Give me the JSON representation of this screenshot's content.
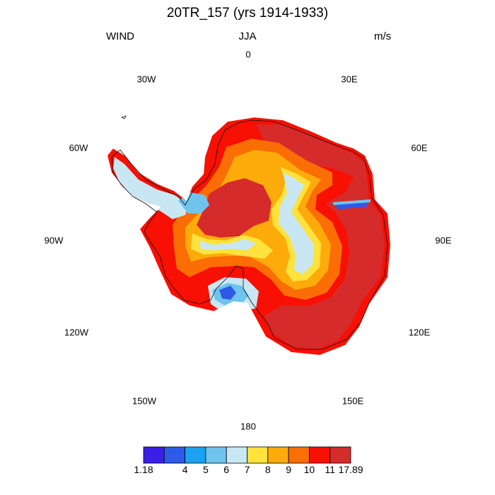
{
  "header": {
    "title": "20TR_157 (yrs 1914-1933)",
    "left": "WIND",
    "center": "JJA",
    "right": "m/s"
  },
  "longitude_labels": [
    "0",
    "30E",
    "60E",
    "90E",
    "120E",
    "150E",
    "180",
    "150W",
    "120W",
    "90W",
    "60W",
    "30W"
  ],
  "legend": {
    "colors": [
      "#3a1fe8",
      "#2d5ae8",
      "#1aa2f0",
      "#6fc4ee",
      "#c8e7f2",
      "#ffe23c",
      "#fcab0b",
      "#fb6d05",
      "#f71003",
      "#d52b2b"
    ],
    "tick_labels": [
      "1.18",
      "4",
      "5",
      "6",
      "7",
      "8",
      "9",
      "10",
      "11",
      "17.89"
    ]
  },
  "colors": {
    "very_high": "#d52b2b",
    "high": "#f71003",
    "orange_red": "#fb6d05",
    "orange": "#fcab0b",
    "yellow": "#ffe23c",
    "pale_blue": "#c8e7f2",
    "light_blue": "#6fc4ee",
    "mid_blue": "#1aa2f0",
    "blue": "#2d5ae8",
    "coast": "#111111"
  }
}
